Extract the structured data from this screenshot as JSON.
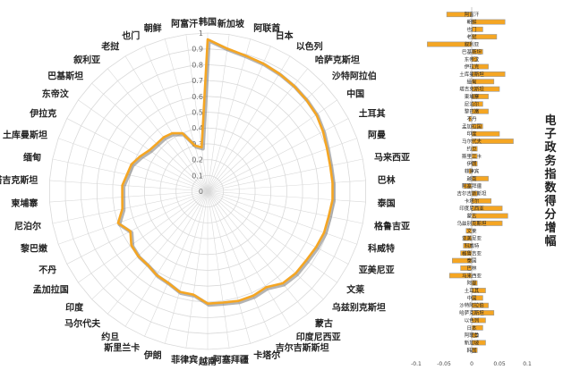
{
  "colors": {
    "line": "#f5a623",
    "shadow": "#777777",
    "grid": "#d9d9d9",
    "bar": "#f5a623",
    "bar_outline": "#999999"
  },
  "side_title": "电子政务指数得分增幅",
  "chart_data": [
    {
      "type": "radar",
      "title": "",
      "rlim": [
        0,
        1
      ],
      "rticks": [
        "0",
        "0.1",
        "0.2",
        "0.3",
        "0.4",
        "0.5",
        "0.6",
        "0.7",
        "0.8",
        "0.9",
        "1"
      ],
      "categories": [
        "韩国",
        "新加坡",
        "阿联酋",
        "日本",
        "以色列",
        "哈萨克斯坦",
        "沙特阿拉伯",
        "中国",
        "土耳其",
        "阿曼",
        "马来西亚",
        "巴林",
        "泰国",
        "格鲁吉亚",
        "科威特",
        "亚美尼亚",
        "文莱",
        "乌兹别克斯坦",
        "蒙古",
        "印度尼西亚",
        "吉尔吉斯斯坦",
        "卡塔尔",
        "阿塞拜疆",
        "越南",
        "菲律宾",
        "伊朗",
        "斯里兰卡",
        "约旦",
        "马尔代夫",
        "印度",
        "孟加拉国",
        "不丹",
        "黎巴嫩",
        "尼泊尔",
        "柬埔寨",
        "塔吉克斯坦",
        "缅甸",
        "土库曼斯坦",
        "伊拉克",
        "东帝汶",
        "巴基斯坦",
        "叙利亚",
        "老挝",
        "也门",
        "朝鲜",
        "阿富汗"
      ],
      "values": [
        0.96,
        0.91,
        0.89,
        0.88,
        0.87,
        0.86,
        0.85,
        0.84,
        0.82,
        0.8,
        0.79,
        0.79,
        0.79,
        0.78,
        0.78,
        0.77,
        0.76,
        0.76,
        0.75,
        0.71,
        0.72,
        0.72,
        0.71,
        0.71,
        0.66,
        0.66,
        0.63,
        0.62,
        0.6,
        0.6,
        0.59,
        0.55,
        0.6,
        0.55,
        0.54,
        0.54,
        0.52,
        0.51,
        0.48,
        0.45,
        0.44,
        0.44,
        0.43,
        0.4,
        0.3,
        0.28
      ]
    },
    {
      "type": "bar",
      "orientation": "horizontal",
      "title": "",
      "xlim": [
        -0.1,
        0.1
      ],
      "xticks": [
        "-0.1",
        "-0.05",
        "0",
        "0.05",
        "0.1"
      ],
      "categories": [
        "阿富汗",
        "朝鲜",
        "也门",
        "老挝",
        "叙利亚",
        "巴基斯坦",
        "东帝汶",
        "伊拉克",
        "土库曼斯坦",
        "缅甸",
        "塔吉克斯坦",
        "柬埔寨",
        "尼泊尔",
        "黎巴嫩",
        "不丹",
        "孟加拉国",
        "印度",
        "马尔代夫",
        "约旦",
        "斯里兰卡",
        "伊朗",
        "菲律宾",
        "越南",
        "阿塞拜疆",
        "吉尔吉斯斯坦",
        "卡塔尔",
        "印度尼西亚",
        "蒙古",
        "乌兹别克斯坦",
        "文莱",
        "亚美尼亚",
        "科威特",
        "格鲁吉亚",
        "泰国",
        "巴林",
        "马来西亚",
        "阿曼",
        "土耳其",
        "中国",
        "沙特阿拉伯",
        "哈萨克斯坦",
        "以色列",
        "日本",
        "阿联酋",
        "新加坡",
        "韩国"
      ],
      "values": [
        -0.045,
        0.06,
        0.02,
        0.045,
        -0.08,
        0.02,
        0.01,
        0.03,
        0.06,
        0.04,
        0.05,
        0.03,
        0.02,
        0.03,
        -0.005,
        0.02,
        0.05,
        0.075,
        0.01,
        0.01,
        0.01,
        -0.005,
        0.03,
        -0.015,
        0.01,
        0.035,
        0.055,
        0.065,
        0.055,
        -0.01,
        -0.015,
        -0.015,
        -0.02,
        -0.035,
        -0.02,
        -0.04,
        0.01,
        0.025,
        0.02,
        0.03,
        0.04,
        0.025,
        0.02,
        0.01,
        0.025,
        0.01
      ]
    }
  ]
}
